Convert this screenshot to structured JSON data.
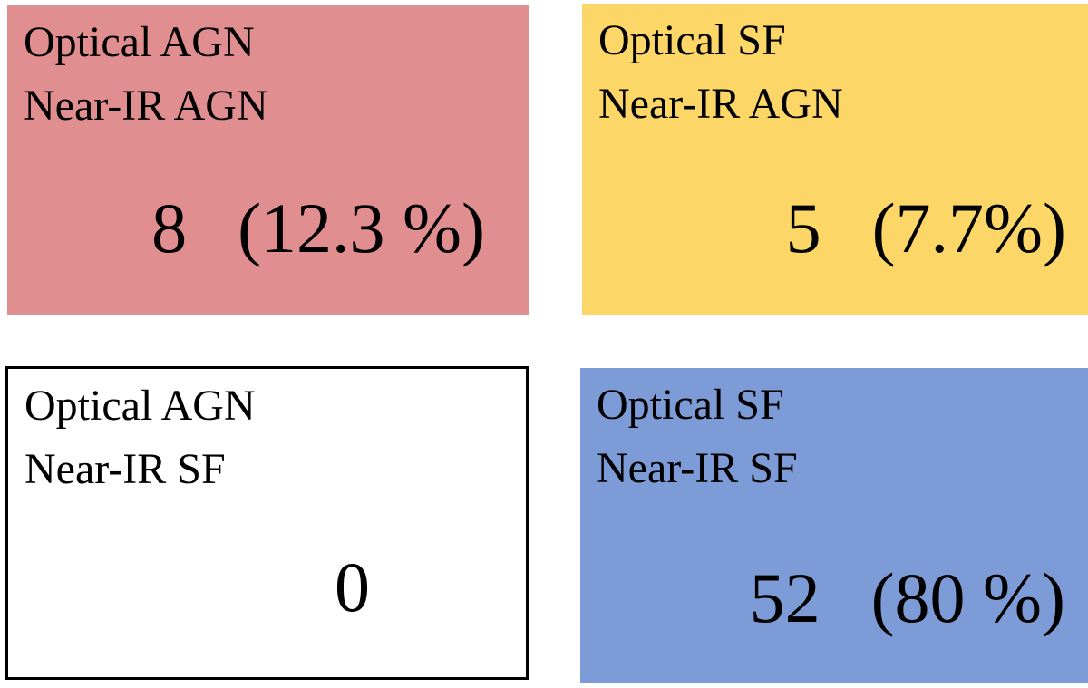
{
  "chart_data": {
    "type": "heatmap",
    "description": "2x2 agreement matrix between optical and near-IR spectral classifications (AGN vs SF)",
    "columns": [
      "Optical AGN",
      "Optical SF"
    ],
    "rows": [
      "Near-IR AGN",
      "Near-IR SF"
    ],
    "counts": [
      [
        8,
        5
      ],
      [
        0,
        52
      ]
    ],
    "percentages": [
      [
        12.3,
        7.7
      ],
      [
        0,
        80
      ]
    ],
    "percent_labels": [
      [
        "(12.3 %)",
        "(7.7%)"
      ],
      [
        "",
        "(80 %)"
      ]
    ],
    "cell_colors": [
      [
        "#E08E90",
        "#FCD666"
      ],
      [
        "#FFFFFF",
        "#7D9BD6"
      ]
    ],
    "legend_position": "none",
    "grid": false
  },
  "quadrants": {
    "tl": {
      "line1": "Optical AGN",
      "line2": "Near-IR AGN",
      "count": "8",
      "percent": "(12.3 %)",
      "color": "#E08E90"
    },
    "tr": {
      "line1": "Optical SF",
      "line2": "Near-IR AGN",
      "count": "5",
      "percent": "(7.7%)",
      "color": "#FCD666"
    },
    "bl": {
      "line1": "Optical AGN",
      "line2": "Near-IR SF",
      "count": "0",
      "percent": "",
      "color": "#FFFFFF"
    },
    "br": {
      "line1": "Optical SF",
      "line2": "Near-IR SF",
      "count": "52",
      "percent": "(80 %)",
      "color": "#7D9BD6"
    }
  },
  "colors": {
    "text": "#000000",
    "background": "#FFFFFF",
    "border": "#000000"
  }
}
